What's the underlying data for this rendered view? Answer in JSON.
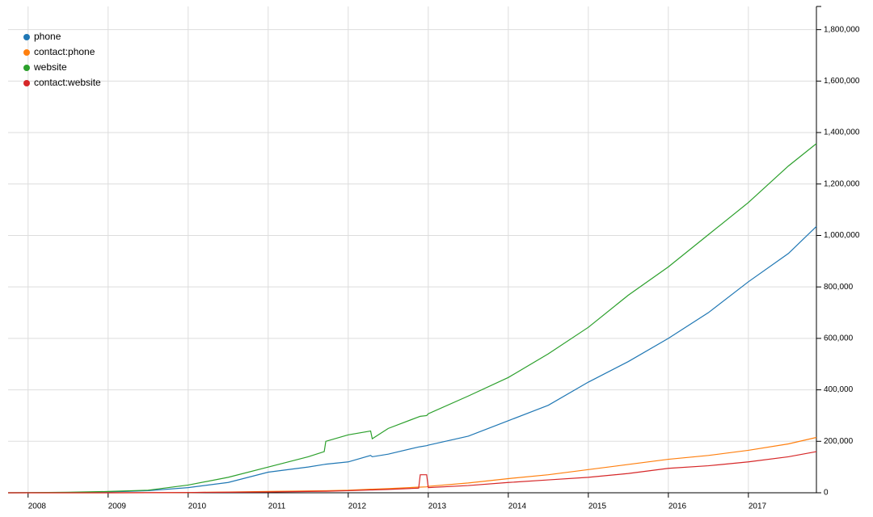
{
  "chart_data": {
    "type": "line",
    "x": [
      2007.75,
      2008,
      2008.5,
      2009,
      2009.5,
      2010,
      2010.5,
      2011,
      2011.5,
      2011.7,
      2011.72,
      2012,
      2012.28,
      2012.3,
      2012.5,
      2012.88,
      2012.9,
      2012.98,
      2013,
      2013.5,
      2014,
      2014.5,
      2015,
      2015.5,
      2016,
      2016.5,
      2017,
      2017.5,
      2017.85
    ],
    "series": [
      {
        "name": "phone",
        "color": "#1f77b4",
        "values": [
          0,
          300,
          1000,
          3000,
          8000,
          20000,
          40000,
          80000,
          100000,
          110000,
          111000,
          120000,
          145000,
          140000,
          150000,
          178000,
          179000,
          183000,
          185000,
          220000,
          280000,
          340000,
          430000,
          510000,
          600000,
          700000,
          820000,
          930000,
          1035000
        ]
      },
      {
        "name": "contact:phone",
        "color": "#ff7f0e",
        "values": [
          0,
          0,
          0,
          0,
          500,
          1000,
          3000,
          5000,
          7000,
          8000,
          8000,
          10000,
          14000,
          14000,
          16000,
          22000,
          22000,
          23000,
          25000,
          38000,
          55000,
          70000,
          90000,
          110000,
          130000,
          145000,
          165000,
          190000,
          215000
        ]
      },
      {
        "name": "website",
        "color": "#2ca02c",
        "values": [
          0,
          500,
          2000,
          5000,
          10000,
          30000,
          60000,
          100000,
          140000,
          160000,
          200000,
          225000,
          240000,
          210000,
          250000,
          295000,
          297000,
          300000,
          307000,
          376000,
          448000,
          540000,
          643000,
          768000,
          878000,
          1003000,
          1128000,
          1270000,
          1357000
        ]
      },
      {
        "name": "contact:website",
        "color": "#d62728",
        "values": [
          0,
          0,
          0,
          0,
          300,
          1000,
          2000,
          3000,
          5000,
          6000,
          6000,
          8000,
          11000,
          11000,
          13000,
          18000,
          70000,
          70000,
          20000,
          28000,
          40000,
          50000,
          60000,
          75000,
          95000,
          105000,
          120000,
          140000,
          160000
        ]
      }
    ],
    "xlim": [
      2007.75,
      2017.85
    ],
    "xticks": [
      2008,
      2009,
      2010,
      2011,
      2012,
      2013,
      2014,
      2015,
      2016,
      2017
    ],
    "ylim": [
      0,
      1890000
    ],
    "yticks": [
      0,
      {
        "value": 200000,
        "label": "200,000"
      },
      {
        "value": 400000,
        "label": "400,000"
      },
      {
        "value": 600000,
        "label": "600,000"
      },
      {
        "value": 800000,
        "label": "800,000"
      },
      {
        "value": 1000000,
        "label": "1,000,000"
      },
      {
        "value": 1200000,
        "label": "1,200,000"
      },
      {
        "value": 1400000,
        "label": "1,400,000"
      },
      {
        "value": 1600000,
        "label": "1,600,000"
      },
      {
        "value": 1800000,
        "label": "1,800,000"
      }
    ],
    "grid": true,
    "legend": "top-left"
  }
}
